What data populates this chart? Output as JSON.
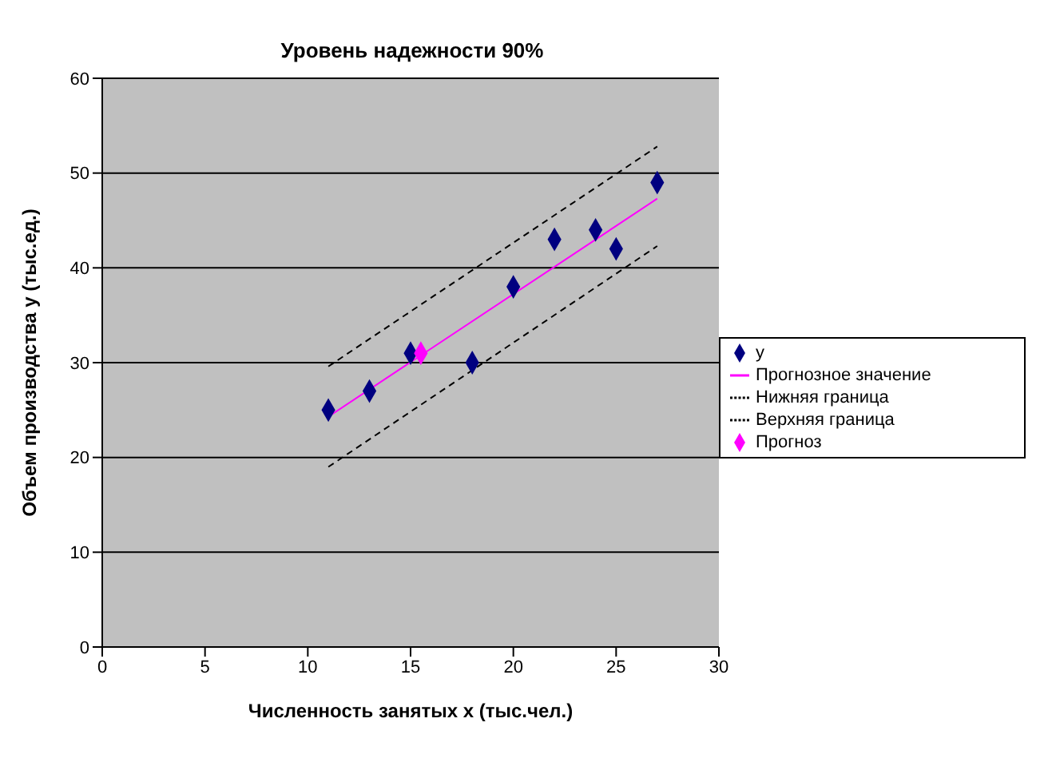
{
  "chart_data": {
    "type": "scatter",
    "title": "Уровень надежности 90%",
    "xlabel": "Численность занятых x (тыс.чел.)",
    "ylabel": "Объем производства y (тыс.ед.)",
    "xlim": [
      0,
      30
    ],
    "xticks": [
      0,
      5,
      10,
      15,
      20,
      25,
      30
    ],
    "ylim": [
      0,
      60
    ],
    "yticks": [
      0,
      10,
      20,
      30,
      40,
      50,
      60
    ],
    "grid": "y",
    "legend": "right",
    "series": [
      {
        "name": "y",
        "marker": "diamond",
        "color": "#000080",
        "x": [
          11,
          13,
          15,
          18,
          20,
          22,
          24,
          25,
          27
        ],
        "values": [
          25,
          27,
          31,
          30,
          38,
          43,
          44,
          42,
          49
        ]
      },
      {
        "name": "Прогнозное значение",
        "type": "line",
        "marker": "none",
        "line_style": "solid",
        "color": "#ff00ff",
        "x": [
          11,
          27
        ],
        "values": [
          24.3,
          47.3
        ]
      },
      {
        "name": "Нижняя граница",
        "type": "line",
        "marker": "none",
        "line_style": "dashed",
        "color": "#000000",
        "x": [
          11,
          27
        ],
        "values": [
          19.0,
          42.3
        ]
      },
      {
        "name": "Верхняя граница",
        "type": "line",
        "marker": "none",
        "line_style": "dashed",
        "color": "#000000",
        "x": [
          11,
          27
        ],
        "values": [
          29.6,
          52.8
        ]
      },
      {
        "name": "Прогноз",
        "marker": "diamond",
        "color": "#ff00ff",
        "x": [
          15.5
        ],
        "values": [
          31
        ]
      }
    ]
  }
}
